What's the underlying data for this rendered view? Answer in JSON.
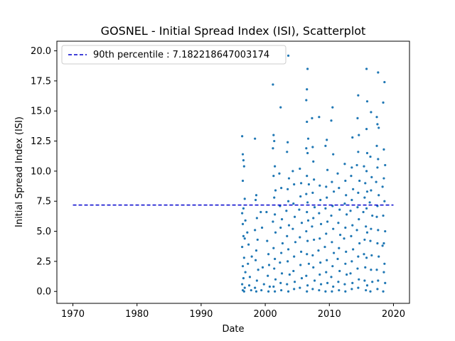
{
  "chart_data": {
    "type": "scatter",
    "title": "GOSNEL - Initial Spread Index (ISI), Scatterplot",
    "xlabel": "Date",
    "ylabel": "Initial Spread Index (ISI)",
    "xlim": [
      1967.5,
      2022.5
    ],
    "ylim": [
      -0.99,
      20.8
    ],
    "x_ticks": [
      1970,
      1980,
      1990,
      2000,
      2010,
      2020
    ],
    "y_ticks": [
      0.0,
      2.5,
      5.0,
      7.5,
      10.0,
      12.5,
      15.0,
      17.5,
      20.0
    ],
    "x_tick_labels": [
      "1970",
      "1980",
      "1990",
      "2000",
      "2010",
      "2020"
    ],
    "y_tick_labels": [
      "0.0",
      "2.5",
      "5.0",
      "7.5",
      "10.0",
      "12.5",
      "15.0",
      "17.5",
      "20.0"
    ],
    "grid": false,
    "legend_position": "top-left",
    "point_color": "#1f77b4",
    "reference_line": {
      "label": "90th percentile : 7.182218647003174",
      "y": 7.182218647003174,
      "x_start": 1970,
      "x_end": 2020,
      "color": "#0000cc",
      "style": "dashed"
    },
    "series": [
      {
        "points": [
          [
            1996.4,
            12.9
          ],
          [
            1996.5,
            11.4
          ],
          [
            1996.6,
            10.9
          ],
          [
            1996.7,
            10.4
          ],
          [
            1996.5,
            9.2
          ],
          [
            1996.8,
            7.7
          ],
          [
            1996.6,
            6.9
          ],
          [
            1996.4,
            6.5
          ],
          [
            1996.9,
            5.9
          ],
          [
            1996.5,
            5.6
          ],
          [
            1996.6,
            4.6
          ],
          [
            1996.8,
            4.4
          ],
          [
            1996.4,
            3.7
          ],
          [
            1996.7,
            2.8
          ],
          [
            1996.5,
            2.1
          ],
          [
            1996.9,
            1.6
          ],
          [
            1996.6,
            1.1
          ],
          [
            1996.4,
            0.6
          ],
          [
            1996.8,
            0.3
          ],
          [
            1996.5,
            0.1
          ],
          [
            1996.7,
            0.0
          ],
          [
            1997.2,
            4.9
          ],
          [
            1997.4,
            3.9
          ],
          [
            1997.3,
            2.3
          ],
          [
            1997.6,
            1.2
          ],
          [
            1997.5,
            0.5
          ],
          [
            1997.8,
            0.1
          ],
          [
            1997.9,
            2.9
          ],
          [
            1998.4,
            12.7
          ],
          [
            1998.6,
            8.0
          ],
          [
            1998.5,
            7.6
          ],
          [
            1998.7,
            6.1
          ],
          [
            1998.4,
            5.1
          ],
          [
            1998.8,
            4.3
          ],
          [
            1998.6,
            3.4
          ],
          [
            1998.5,
            2.6
          ],
          [
            1998.9,
            1.8
          ],
          [
            1998.7,
            0.9
          ],
          [
            1998.4,
            0.3
          ],
          [
            1998.6,
            0.0
          ],
          [
            1999.3,
            6.6
          ],
          [
            1999.5,
            5.3
          ],
          [
            1999.6,
            2.0
          ],
          [
            1999.8,
            0.6
          ],
          [
            1999.4,
            0.1
          ],
          [
            2000.2,
            6.6
          ],
          [
            2000.3,
            4.2
          ],
          [
            2000.5,
            3.1
          ],
          [
            2000.6,
            2.2
          ],
          [
            2000.4,
            1.3
          ],
          [
            2000.7,
            0.4
          ],
          [
            2000.5,
            0.0
          ],
          [
            2001.2,
            17.2
          ],
          [
            2001.3,
            13.0
          ],
          [
            2001.4,
            12.5
          ],
          [
            2001.2,
            11.9
          ],
          [
            2001.5,
            10.4
          ],
          [
            2001.3,
            9.6
          ],
          [
            2001.6,
            8.4
          ],
          [
            2001.4,
            7.8
          ],
          [
            2001.5,
            6.4
          ],
          [
            2001.2,
            5.8
          ],
          [
            2001.6,
            4.9
          ],
          [
            2001.3,
            3.6
          ],
          [
            2001.5,
            2.7
          ],
          [
            2001.4,
            1.9
          ],
          [
            2001.6,
            1.0
          ],
          [
            2001.3,
            0.4
          ],
          [
            2001.5,
            0.0
          ],
          [
            2002.4,
            15.3
          ],
          [
            2002.2,
            9.8
          ],
          [
            2002.5,
            8.6
          ],
          [
            2002.3,
            7.1
          ],
          [
            2002.6,
            6.0
          ],
          [
            2002.4,
            5.3
          ],
          [
            2002.7,
            4.0
          ],
          [
            2002.5,
            3.2
          ],
          [
            2002.3,
            2.4
          ],
          [
            2002.6,
            1.5
          ],
          [
            2002.4,
            0.7
          ],
          [
            2002.5,
            0.1
          ],
          [
            2003.6,
            19.6
          ],
          [
            2003.5,
            12.4
          ],
          [
            2003.4,
            11.6
          ],
          [
            2003.7,
            9.4
          ],
          [
            2003.5,
            8.5
          ],
          [
            2003.6,
            7.5
          ],
          [
            2003.3,
            6.7
          ],
          [
            2003.7,
            5.5
          ],
          [
            2003.4,
            4.6
          ],
          [
            2003.6,
            3.5
          ],
          [
            2003.5,
            2.5
          ],
          [
            2003.8,
            1.4
          ],
          [
            2003.4,
            0.6
          ],
          [
            2003.6,
            0.0
          ],
          [
            2004.3,
            10.0
          ],
          [
            2004.5,
            8.9
          ],
          [
            2004.4,
            7.3
          ],
          [
            2004.6,
            6.2
          ],
          [
            2004.3,
            5.2
          ],
          [
            2004.7,
            4.1
          ],
          [
            2004.5,
            2.9
          ],
          [
            2004.4,
            1.7
          ],
          [
            2004.6,
            0.8
          ],
          [
            2004.5,
            0.2
          ],
          [
            2005.4,
            10.2
          ],
          [
            2005.6,
            9.0
          ],
          [
            2005.5,
            7.9
          ],
          [
            2005.3,
            6.8
          ],
          [
            2005.7,
            5.7
          ],
          [
            2005.4,
            4.5
          ],
          [
            2005.6,
            3.3
          ],
          [
            2005.5,
            2.2
          ],
          [
            2005.7,
            1.1
          ],
          [
            2005.4,
            0.3
          ],
          [
            2006.6,
            18.5
          ],
          [
            2006.5,
            16.8
          ],
          [
            2006.4,
            15.9
          ],
          [
            2006.5,
            14.1
          ],
          [
            2006.7,
            12.7
          ],
          [
            2006.4,
            11.9
          ],
          [
            2006.6,
            11.5
          ],
          [
            2006.5,
            9.6
          ],
          [
            2006.8,
            8.9
          ],
          [
            2006.4,
            8.1
          ],
          [
            2006.6,
            7.4
          ],
          [
            2006.5,
            6.6
          ],
          [
            2006.7,
            5.9
          ],
          [
            2006.4,
            5.0
          ],
          [
            2006.6,
            4.2
          ],
          [
            2006.5,
            3.1
          ],
          [
            2006.8,
            2.3
          ],
          [
            2006.4,
            1.3
          ],
          [
            2006.6,
            0.5
          ],
          [
            2006.5,
            0.0
          ],
          [
            2007.3,
            14.4
          ],
          [
            2007.4,
            12.0
          ],
          [
            2007.5,
            10.8
          ],
          [
            2007.6,
            9.3
          ],
          [
            2007.4,
            8.2
          ],
          [
            2007.7,
            7.0
          ],
          [
            2007.5,
            6.1
          ],
          [
            2007.3,
            5.4
          ],
          [
            2007.6,
            4.3
          ],
          [
            2007.4,
            3.0
          ],
          [
            2007.5,
            2.0
          ],
          [
            2007.7,
            0.9
          ],
          [
            2007.4,
            0.2
          ],
          [
            2008.4,
            14.5
          ],
          [
            2008.5,
            8.8
          ],
          [
            2008.6,
            7.6
          ],
          [
            2008.4,
            6.5
          ],
          [
            2008.7,
            5.6
          ],
          [
            2008.5,
            4.4
          ],
          [
            2008.3,
            3.4
          ],
          [
            2008.6,
            2.4
          ],
          [
            2008.5,
            1.4
          ],
          [
            2008.7,
            0.6
          ],
          [
            2008.4,
            0.1
          ],
          [
            2009.6,
            12.6
          ],
          [
            2009.4,
            12.1
          ],
          [
            2009.7,
            10.1
          ],
          [
            2009.5,
            8.7
          ],
          [
            2009.6,
            7.8
          ],
          [
            2009.4,
            6.9
          ],
          [
            2009.7,
            5.8
          ],
          [
            2009.5,
            4.8
          ],
          [
            2009.3,
            3.7
          ],
          [
            2009.6,
            2.6
          ],
          [
            2009.5,
            1.6
          ],
          [
            2009.7,
            0.7
          ],
          [
            2009.4,
            0.0
          ],
          [
            2010.5,
            15.3
          ],
          [
            2010.3,
            14.2
          ],
          [
            2010.6,
            11.4
          ],
          [
            2010.4,
            9.1
          ],
          [
            2010.7,
            8.3
          ],
          [
            2010.5,
            7.1
          ],
          [
            2010.3,
            6.3
          ],
          [
            2010.6,
            5.2
          ],
          [
            2010.4,
            4.1
          ],
          [
            2010.7,
            3.2
          ],
          [
            2010.5,
            2.1
          ],
          [
            2010.3,
            1.2
          ],
          [
            2010.6,
            0.4
          ],
          [
            2010.4,
            0.0
          ],
          [
            2011.3,
            9.8
          ],
          [
            2011.5,
            8.6
          ],
          [
            2011.6,
            6.8
          ],
          [
            2011.4,
            5.7
          ],
          [
            2011.7,
            4.7
          ],
          [
            2011.5,
            3.6
          ],
          [
            2011.3,
            2.7
          ],
          [
            2011.6,
            1.7
          ],
          [
            2011.4,
            0.8
          ],
          [
            2011.5,
            0.1
          ],
          [
            2012.4,
            10.6
          ],
          [
            2012.5,
            9.2
          ],
          [
            2012.6,
            8.0
          ],
          [
            2012.4,
            7.3
          ],
          [
            2012.7,
            6.4
          ],
          [
            2012.5,
            5.3
          ],
          [
            2012.3,
            4.4
          ],
          [
            2012.6,
            3.3
          ],
          [
            2012.5,
            2.3
          ],
          [
            2012.7,
            1.4
          ],
          [
            2012.4,
            0.6
          ],
          [
            2012.5,
            0.0
          ],
          [
            2013.6,
            12.8
          ],
          [
            2013.5,
            10.3
          ],
          [
            2013.4,
            9.6
          ],
          [
            2013.7,
            8.5
          ],
          [
            2013.5,
            7.6
          ],
          [
            2013.3,
            6.7
          ],
          [
            2013.6,
            5.5
          ],
          [
            2013.4,
            4.6
          ],
          [
            2013.7,
            3.5
          ],
          [
            2013.5,
            2.5
          ],
          [
            2013.3,
            1.5
          ],
          [
            2013.6,
            0.7
          ],
          [
            2013.5,
            0.2
          ],
          [
            2014.5,
            16.3
          ],
          [
            2014.4,
            14.4
          ],
          [
            2014.6,
            13.0
          ],
          [
            2014.5,
            11.6
          ],
          [
            2014.3,
            10.5
          ],
          [
            2014.7,
            9.2
          ],
          [
            2014.5,
            8.2
          ],
          [
            2014.4,
            7.0
          ],
          [
            2014.6,
            6.0
          ],
          [
            2014.3,
            5.1
          ],
          [
            2014.7,
            4.0
          ],
          [
            2014.5,
            2.9
          ],
          [
            2014.4,
            1.9
          ],
          [
            2014.6,
            1.0
          ],
          [
            2014.5,
            0.3
          ],
          [
            2015.4,
            10.4
          ],
          [
            2015.6,
            9.0
          ],
          [
            2015.5,
            7.8
          ],
          [
            2015.3,
            6.6
          ],
          [
            2015.7,
            5.4
          ],
          [
            2015.5,
            4.3
          ],
          [
            2015.4,
            3.1
          ],
          [
            2015.6,
            2.0
          ],
          [
            2015.5,
            0.9
          ],
          [
            2015.7,
            0.1
          ],
          [
            2015.8,
            18.5
          ],
          [
            2015.9,
            15.8
          ],
          [
            2015.8,
            13.5
          ],
          [
            2015.9,
            11.5
          ],
          [
            2015.8,
            10.0
          ],
          [
            2015.9,
            8.3
          ],
          [
            2015.8,
            6.9
          ],
          [
            2015.9,
            4.9
          ],
          [
            2015.8,
            2.8
          ],
          [
            2015.9,
            0.5
          ],
          [
            2016.5,
            14.9
          ],
          [
            2016.4,
            11.2
          ],
          [
            2016.6,
            9.5
          ],
          [
            2016.5,
            8.4
          ],
          [
            2016.3,
            7.4
          ],
          [
            2016.7,
            6.3
          ],
          [
            2016.5,
            5.2
          ],
          [
            2016.4,
            4.2
          ],
          [
            2016.6,
            3.0
          ],
          [
            2016.5,
            1.8
          ],
          [
            2016.7,
            0.8
          ],
          [
            2016.4,
            0.0
          ],
          [
            2017.6,
            18.2
          ],
          [
            2017.4,
            14.5
          ],
          [
            2017.5,
            13.9
          ],
          [
            2017.7,
            13.6
          ],
          [
            2017.4,
            12.1
          ],
          [
            2017.6,
            11.0
          ],
          [
            2017.5,
            10.3
          ],
          [
            2017.3,
            9.1
          ],
          [
            2017.7,
            8.0
          ],
          [
            2017.5,
            7.1
          ],
          [
            2017.4,
            6.2
          ],
          [
            2017.6,
            5.1
          ],
          [
            2017.5,
            4.0
          ],
          [
            2017.7,
            2.9
          ],
          [
            2017.4,
            1.8
          ],
          [
            2017.6,
            0.9
          ],
          [
            2017.5,
            0.2
          ],
          [
            2018.6,
            17.4
          ],
          [
            2018.4,
            15.7
          ],
          [
            2018.5,
            11.8
          ],
          [
            2018.7,
            10.5
          ],
          [
            2018.5,
            9.4
          ],
          [
            2018.3,
            8.7
          ],
          [
            2018.6,
            7.5
          ],
          [
            2018.4,
            6.3
          ],
          [
            2018.7,
            5.0
          ],
          [
            2018.5,
            4.0
          ],
          [
            2018.3,
            3.8
          ],
          [
            2018.6,
            2.3
          ],
          [
            2018.5,
            1.6
          ],
          [
            2018.7,
            0.7
          ],
          [
            2018.4,
            0.0
          ]
        ]
      }
    ]
  }
}
